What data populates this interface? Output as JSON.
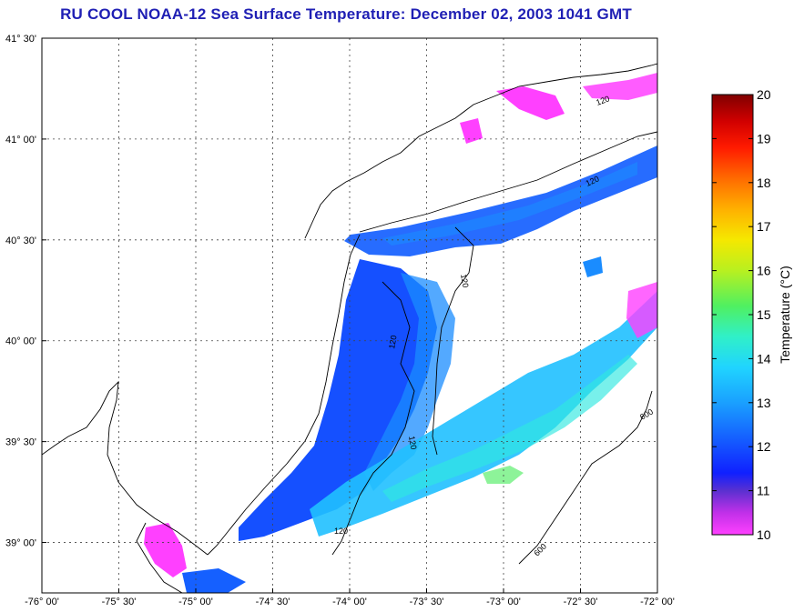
{
  "title": "RU COOL  NOAA-12  Sea Surface Temperature:  December 02, 2003 1041 GMT",
  "map": {
    "lon_range": [
      -76,
      -72
    ],
    "lat_range": [
      38.75,
      41.5
    ],
    "lon_ticks": [
      {
        "value": -76.0,
        "label": "-76° 00'"
      },
      {
        "value": -75.5,
        "label": "-75° 30'"
      },
      {
        "value": -75.0,
        "label": "-75° 00'"
      },
      {
        "value": -74.5,
        "label": "-74° 30'"
      },
      {
        "value": -74.0,
        "label": "-74° 00'"
      },
      {
        "value": -73.5,
        "label": "-73° 30'"
      },
      {
        "value": -73.0,
        "label": "-73° 00'"
      },
      {
        "value": -72.5,
        "label": "-72° 30'"
      },
      {
        "value": -72.0,
        "label": "-72° 00'"
      }
    ],
    "lat_ticks": [
      {
        "value": 41.5,
        "label": "41° 30'"
      },
      {
        "value": 41.0,
        "label": "41° 00'"
      },
      {
        "value": 40.5,
        "label": "40° 30'"
      },
      {
        "value": 40.0,
        "label": "40° 00'"
      },
      {
        "value": 39.5,
        "label": "39° 30'"
      },
      {
        "value": 39.0,
        "label": "39° 00'"
      }
    ],
    "contour_labels": [
      "120",
      "120",
      "120",
      "120",
      "120",
      "120",
      "600",
      "600"
    ]
  },
  "colorbar": {
    "label": "Temperature (°C)",
    "min": 10,
    "max": 20,
    "ticks": [
      "10",
      "11",
      "12",
      "13",
      "14",
      "15",
      "16",
      "17",
      "18",
      "19",
      "20"
    ],
    "colors": [
      "#ff40ff",
      "#6a2cd6",
      "#1530ff",
      "#1a8cff",
      "#29e0f0",
      "#3af08a",
      "#c8f020",
      "#ffd000",
      "#ff7a00",
      "#ff1a00",
      "#8a0000"
    ]
  }
}
